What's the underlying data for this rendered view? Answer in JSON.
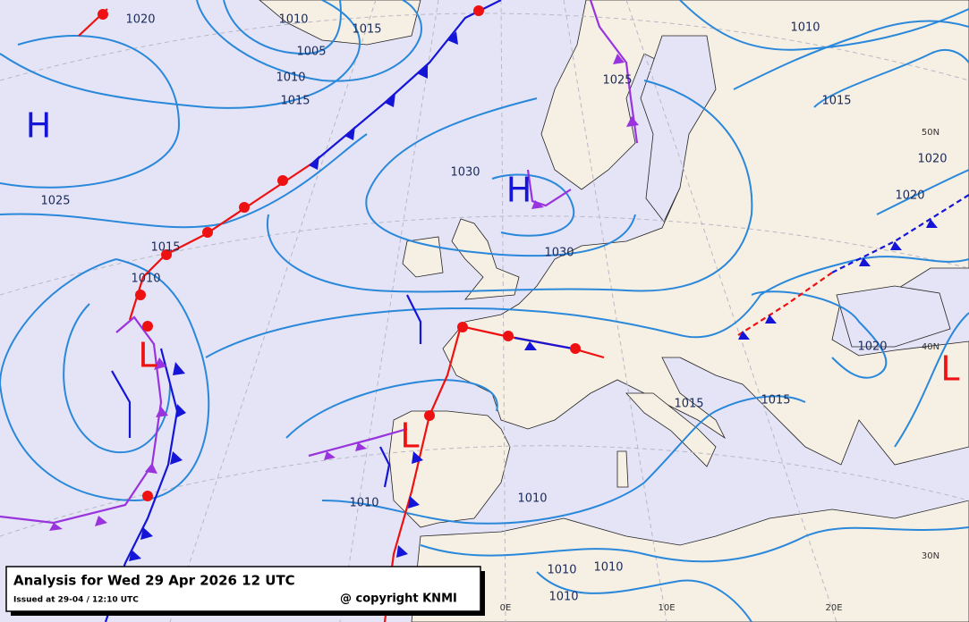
{
  "title": "Analysis for Wed 29 Apr 2026 12 UTC",
  "issued": "Issued at 29-04 / 12:10 UTC",
  "copyright": "@ copyright KNMI",
  "pressure_centers": [
    "H",
    "H",
    "L",
    "L",
    "L"
  ],
  "isobar_labels": [
    "1020",
    "1010",
    "1005",
    "1015",
    "1010",
    "1015",
    "1010",
    "1025",
    "1015",
    "1025",
    "1030",
    "1020",
    "1020",
    "1015",
    "1030",
    "1010",
    "1020",
    "1015",
    "1015",
    "1010",
    "1010",
    "1010",
    "1010",
    "1010"
  ],
  "grid_labels": [
    "50N",
    "40N",
    "30N",
    "0E",
    "10E",
    "20E"
  ]
}
